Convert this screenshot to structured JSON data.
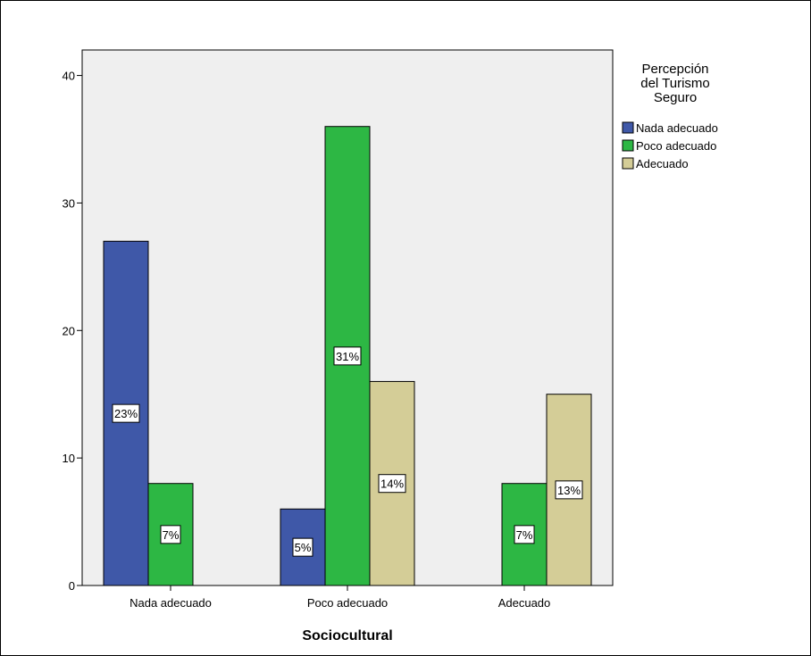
{
  "chart_data": {
    "type": "bar",
    "categories": [
      "Nada adecuado",
      "Poco adecuado",
      "Adecuado"
    ],
    "xlabel": "Sociocultural",
    "ylabel": "",
    "ylim": [
      0,
      42
    ],
    "yticks": [
      0,
      10,
      20,
      30,
      40
    ],
    "legend_title": [
      "Percepción",
      "del Turismo",
      "Seguro"
    ],
    "legend_position": "top-right",
    "series": [
      {
        "name": "Nada adecuado",
        "color": "#3f58a8",
        "values": [
          27,
          6,
          null
        ],
        "labels": [
          "23%",
          "5%",
          null
        ]
      },
      {
        "name": "Poco adecuado",
        "color": "#2db744",
        "values": [
          8,
          36,
          8
        ],
        "labels": [
          "7%",
          "31%",
          "7%"
        ]
      },
      {
        "name": "Adecuado",
        "color": "#d4cd97",
        "values": [
          null,
          16,
          15
        ],
        "labels": [
          null,
          "14%",
          "13%"
        ]
      }
    ]
  }
}
